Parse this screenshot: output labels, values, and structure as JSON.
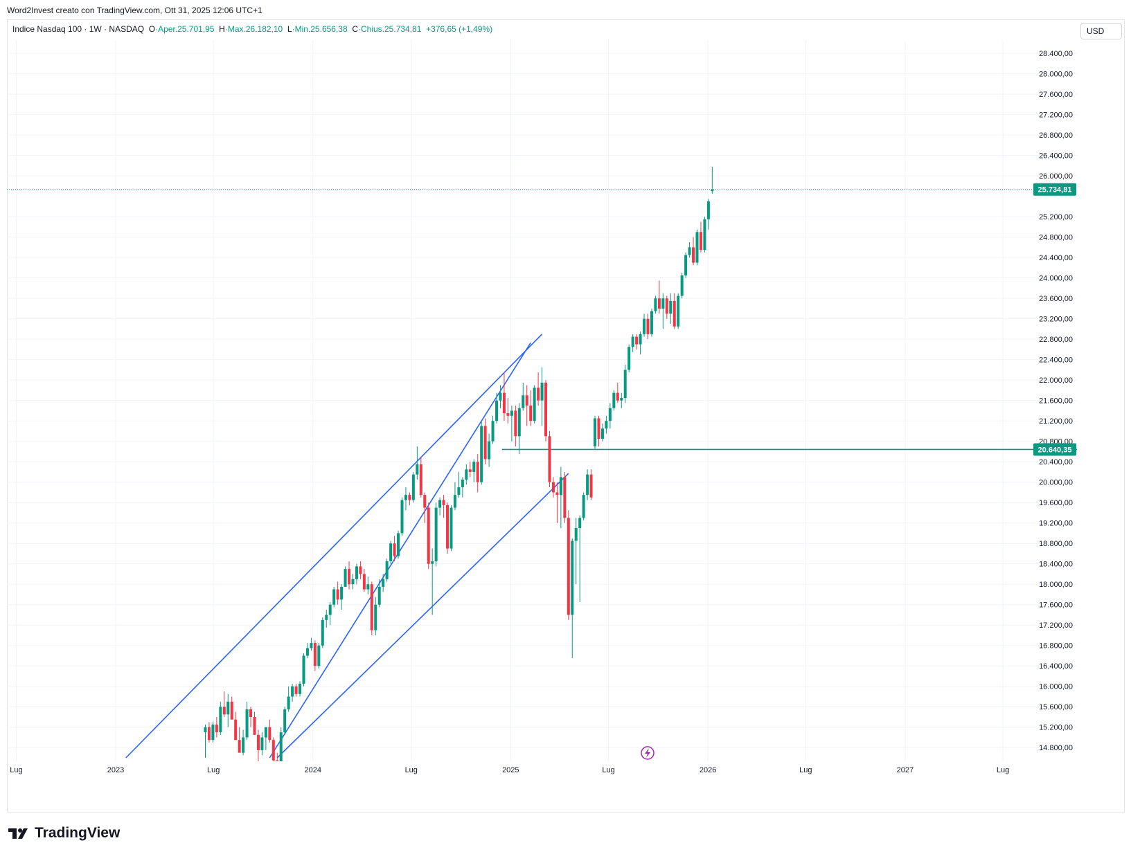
{
  "credit": "Word2Invest creato con TradingView.com, Ott 31, 2025 12:06 UTC+1",
  "legend": {
    "symbol": "Indice Nasdaq 100 · 1W · NASDAQ",
    "o_label": "O",
    "o_value": "·Aper.25.701,95",
    "h_label": "H",
    "h_value": "·Max.26.182,10",
    "l_label": "L",
    "l_value": "·Min.25.656,38",
    "c_label": "C",
    "c_value": "·Chius.25.734,81",
    "change": "+376,65 (+1,49%)"
  },
  "currency": "USD",
  "logo_text": "TradingView",
  "colors": {
    "up": "#089981",
    "down": "#f23645",
    "trendline": "#2962ff",
    "level": "#089981",
    "grid": "#f0f3fa",
    "flash_icon": "#9c27b0"
  },
  "chart_data": {
    "type": "candlestick",
    "interval": "1W",
    "y_axis": {
      "position": "right",
      "min": 14600,
      "max": 28700,
      "tick_labels": [
        "28.400,00",
        "28.000,00",
        "27.600,00",
        "27.200,00",
        "26.800,00",
        "26.400,00",
        "26.000,00",
        "25.200,00",
        "24.800,00",
        "24.400,00",
        "24.000,00",
        "23.600,00",
        "23.200,00",
        "22.800,00",
        "22.400,00",
        "22.000,00",
        "21.600,00",
        "21.200,00",
        "20.800,00",
        "20.400,00",
        "20.000,00",
        "19.600,00",
        "19.200,00",
        "18.800,00",
        "18.400,00",
        "18.000,00",
        "17.600,00",
        "17.200,00",
        "16.800,00",
        "16.400,00",
        "16.000,00",
        "15.600,00",
        "15.200,00",
        "14.800,00"
      ],
      "tick_values": [
        28400,
        28000,
        27600,
        27200,
        26800,
        26400,
        26000,
        25200,
        24800,
        24400,
        24000,
        23600,
        23200,
        22800,
        22400,
        22000,
        21600,
        21200,
        20800,
        20400,
        20000,
        19600,
        19200,
        18800,
        18400,
        18000,
        17600,
        17200,
        16800,
        16400,
        16000,
        15600,
        15200,
        14800
      ]
    },
    "x_axis": {
      "start": "2022-06-01",
      "end": "2027-11-15",
      "labels": [
        {
          "text": "Lug",
          "date": "2022-07-01"
        },
        {
          "text": "2023",
          "date": "2023-01-01"
        },
        {
          "text": "Lug",
          "date": "2023-07-01"
        },
        {
          "text": "2024",
          "date": "2024-01-01"
        },
        {
          "text": "Lug",
          "date": "2024-07-01"
        },
        {
          "text": "2025",
          "date": "2025-01-01"
        },
        {
          "text": "Lug",
          "date": "2025-07-01"
        },
        {
          "text": "2026",
          "date": "2026-01-01"
        },
        {
          "text": "Lug",
          "date": "2026-07-01"
        },
        {
          "text": "2027",
          "date": "2027-01-01"
        },
        {
          "text": "Lug",
          "date": "2027-07-01"
        }
      ]
    },
    "grid": true,
    "price_labels": [
      {
        "text": "25.734,81",
        "value": 25734.81,
        "style": "last-price"
      },
      {
        "text": "20.640,35",
        "value": 20640.35,
        "style": "level"
      }
    ],
    "horizontal_level": {
      "value": 20640.35,
      "from": "2024-12-16"
    },
    "trendlines": [
      {
        "x1": "2023-01-20",
        "y1": 14600,
        "x2": "2025-02-28",
        "y2": 22900
      },
      {
        "x1": "2023-10-13",
        "y1": 14600,
        "x2": "2025-02-07",
        "y2": 22730
      },
      {
        "x1": "2023-10-27",
        "y1": 14600,
        "x2": "2025-04-18",
        "y2": 20170
      }
    ],
    "ohlc": [
      [
        "2023-06-16",
        15100,
        15250,
        14600,
        15200
      ],
      [
        "2023-06-23",
        15200,
        15300,
        14900,
        14950
      ],
      [
        "2023-06-30",
        14950,
        15300,
        14900,
        15250
      ],
      [
        "2023-07-07",
        15250,
        15400,
        15000,
        15100
      ],
      [
        "2023-07-14",
        15100,
        15700,
        15050,
        15600
      ],
      [
        "2023-07-21",
        15600,
        15900,
        15400,
        15450
      ],
      [
        "2023-07-28",
        15450,
        15850,
        15200,
        15700
      ],
      [
        "2023-08-04",
        15700,
        15800,
        15350,
        15350
      ],
      [
        "2023-08-11",
        15350,
        15500,
        14950,
        14950
      ],
      [
        "2023-08-18",
        14950,
        15200,
        14700,
        14700
      ],
      [
        "2023-08-25",
        14700,
        15150,
        14650,
        15000
      ],
      [
        "2023-09-01",
        15000,
        15700,
        14950,
        15550
      ],
      [
        "2023-09-08",
        15550,
        15600,
        15200,
        15400
      ],
      [
        "2023-09-15",
        15400,
        15500,
        15050,
        15050
      ],
      [
        "2023-09-22",
        15050,
        15150,
        14500,
        14750
      ],
      [
        "2023-09-29",
        14750,
        15100,
        14650,
        15000
      ],
      [
        "2023-10-06",
        15000,
        15200,
        14750,
        15200
      ],
      [
        "2023-10-13",
        15200,
        15350,
        14900,
        14950
      ],
      [
        "2023-10-20",
        14950,
        15000,
        14500,
        14550
      ],
      [
        "2023-10-27",
        14550,
        14700,
        14150,
        14200
      ],
      [
        "2023-11-03",
        14200,
        15200,
        14150,
        15100
      ],
      [
        "2023-11-10",
        15100,
        15600,
        15050,
        15550
      ],
      [
        "2023-11-17",
        15550,
        16000,
        15500,
        15800
      ],
      [
        "2023-11-24",
        15800,
        16050,
        15700,
        16000
      ],
      [
        "2023-12-01",
        16000,
        16050,
        15800,
        15850
      ],
      [
        "2023-12-08",
        15850,
        16100,
        15800,
        16050
      ],
      [
        "2023-12-15",
        16050,
        16650,
        16000,
        16600
      ],
      [
        "2023-12-22",
        16600,
        16850,
        16550,
        16750
      ],
      [
        "2023-12-29",
        16750,
        16950,
        16700,
        16850
      ],
      [
        "2024-01-05",
        16850,
        16900,
        16300,
        16400
      ],
      [
        "2024-01-12",
        16400,
        16850,
        16350,
        16800
      ],
      [
        "2024-01-19",
        16800,
        17350,
        16750,
        17300
      ],
      [
        "2024-01-26",
        17300,
        17500,
        17150,
        17400
      ],
      [
        "2024-02-02",
        17400,
        17650,
        17200,
        17600
      ],
      [
        "2024-02-09",
        17600,
        17950,
        17550,
        17900
      ],
      [
        "2024-02-16",
        17900,
        18050,
        17600,
        17700
      ],
      [
        "2024-02-23",
        17700,
        18000,
        17500,
        17950
      ],
      [
        "2024-03-01",
        17950,
        18350,
        17950,
        18300
      ],
      [
        "2024-03-08",
        18300,
        18450,
        17900,
        18000
      ],
      [
        "2024-03-15",
        18000,
        18200,
        17900,
        18100
      ],
      [
        "2024-03-22",
        18100,
        18400,
        18000,
        18350
      ],
      [
        "2024-03-29",
        18350,
        18450,
        18100,
        18200
      ],
      [
        "2024-04-05",
        18200,
        18300,
        17850,
        17900
      ],
      [
        "2024-04-12",
        17900,
        18150,
        17800,
        18000
      ],
      [
        "2024-04-19",
        18000,
        18050,
        17000,
        17100
      ],
      [
        "2024-04-26",
        17100,
        17750,
        17000,
        17600
      ],
      [
        "2024-05-03",
        17600,
        18100,
        17550,
        17950
      ],
      [
        "2024-05-10",
        17950,
        18200,
        17850,
        18100
      ],
      [
        "2024-05-17",
        18100,
        18500,
        18050,
        18450
      ],
      [
        "2024-05-24",
        18450,
        18850,
        18400,
        18800
      ],
      [
        "2024-05-31",
        18800,
        18950,
        18450,
        18550
      ],
      [
        "2024-06-07",
        18550,
        19050,
        18500,
        19000
      ],
      [
        "2024-06-14",
        19000,
        19700,
        18950,
        19650
      ],
      [
        "2024-06-21",
        19650,
        19900,
        19450,
        19750
      ],
      [
        "2024-06-28",
        19750,
        19800,
        19550,
        19650
      ],
      [
        "2024-07-05",
        19650,
        20200,
        19600,
        20150
      ],
      [
        "2024-07-12",
        20150,
        20700,
        20050,
        20350
      ],
      [
        "2024-07-19",
        20350,
        20500,
        19700,
        19750
      ],
      [
        "2024-07-26",
        19750,
        19800,
        19200,
        19500
      ],
      [
        "2024-08-02",
        19500,
        19600,
        18300,
        18400
      ],
      [
        "2024-08-09",
        18400,
        18700,
        17400,
        18450
      ],
      [
        "2024-08-16",
        18450,
        19600,
        18350,
        19500
      ],
      [
        "2024-08-23",
        19500,
        19700,
        19350,
        19650
      ],
      [
        "2024-08-30",
        19650,
        19750,
        19300,
        19550
      ],
      [
        "2024-09-06",
        19550,
        19600,
        18600,
        18700
      ],
      [
        "2024-09-13",
        18700,
        19550,
        18650,
        19500
      ],
      [
        "2024-09-20",
        19500,
        20000,
        19450,
        19750
      ],
      [
        "2024-09-27",
        19750,
        20200,
        19700,
        19900
      ],
      [
        "2024-10-04",
        19900,
        20100,
        19700,
        20050
      ],
      [
        "2024-10-11",
        20050,
        20350,
        19950,
        20250
      ],
      [
        "2024-10-18",
        20250,
        20400,
        20100,
        20200
      ],
      [
        "2024-10-25",
        20200,
        20450,
        20000,
        20400
      ],
      [
        "2024-11-01",
        20400,
        20550,
        19800,
        20000
      ],
      [
        "2024-11-08",
        20000,
        21200,
        19950,
        21100
      ],
      [
        "2024-11-15",
        21100,
        21250,
        20350,
        20450
      ],
      [
        "2024-11-22",
        20450,
        20950,
        20300,
        20800
      ],
      [
        "2024-11-29",
        20800,
        21300,
        20750,
        21200
      ],
      [
        "2024-12-06",
        21200,
        21750,
        21150,
        21600
      ],
      [
        "2024-12-13",
        21600,
        21900,
        21450,
        21750
      ],
      [
        "2024-12-20",
        21750,
        22150,
        21200,
        21350
      ],
      [
        "2024-12-27",
        21350,
        21650,
        21150,
        21300
      ],
      [
        "2025-01-03",
        21300,
        21500,
        20800,
        21400
      ],
      [
        "2025-01-10",
        21400,
        21500,
        20700,
        20900
      ],
      [
        "2025-01-17",
        20900,
        21550,
        20550,
        21450
      ],
      [
        "2025-01-24",
        21450,
        21950,
        21400,
        21700
      ],
      [
        "2025-01-31",
        21700,
        21900,
        21100,
        21500
      ],
      [
        "2025-02-07",
        21500,
        21800,
        21100,
        21200
      ],
      [
        "2025-02-14",
        21200,
        21900,
        21150,
        21850
      ],
      [
        "2025-02-21",
        21850,
        22150,
        21500,
        21600
      ],
      [
        "2025-02-28",
        21600,
        22250,
        21100,
        21950
      ],
      [
        "2025-03-07",
        21950,
        22000,
        20800,
        20900
      ],
      [
        "2025-03-14",
        20900,
        21000,
        19900,
        20000
      ],
      [
        "2025-03-21",
        20000,
        20100,
        19700,
        19800
      ],
      [
        "2025-03-28",
        19800,
        20000,
        19200,
        19750
      ],
      [
        "2025-04-04",
        19750,
        20300,
        19100,
        20100
      ],
      [
        "2025-04-11",
        20100,
        20200,
        19200,
        19300
      ],
      [
        "2025-04-18",
        19300,
        19450,
        17300,
        17400
      ],
      [
        "2025-04-25",
        17400,
        18900,
        16550,
        18850
      ],
      [
        "2025-05-02",
        18850,
        19300,
        18000,
        19100
      ],
      [
        "2025-05-09",
        19100,
        19350,
        17650,
        19300
      ],
      [
        "2025-05-16",
        19300,
        19800,
        19250,
        19750
      ],
      [
        "2025-05-23",
        19750,
        20250,
        19650,
        20150
      ],
      [
        "2025-05-30",
        20150,
        20250,
        19650,
        19700
      ],
      [
        "2025-06-06",
        20700,
        21300,
        20650,
        21250
      ],
      [
        "2025-06-13",
        21250,
        21300,
        20700,
        20850
      ],
      [
        "2025-06-20",
        20850,
        21150,
        20800,
        21050
      ],
      [
        "2025-06-27",
        21050,
        21300,
        20950,
        21200
      ],
      [
        "2025-07-04",
        21200,
        21550,
        21050,
        21450
      ],
      [
        "2025-07-11",
        21450,
        21800,
        21400,
        21750
      ],
      [
        "2025-07-18",
        21750,
        21950,
        21550,
        21600
      ],
      [
        "2025-07-25",
        21600,
        21750,
        21450,
        21650
      ],
      [
        "2025-08-01",
        21650,
        22300,
        21550,
        22200
      ],
      [
        "2025-08-08",
        22200,
        22700,
        22150,
        22650
      ],
      [
        "2025-08-15",
        22650,
        22900,
        22550,
        22850
      ],
      [
        "2025-08-22",
        22850,
        22900,
        22600,
        22700
      ],
      [
        "2025-08-29",
        22700,
        22950,
        22500,
        22900
      ],
      [
        "2025-09-05",
        22900,
        23300,
        22850,
        23200
      ],
      [
        "2025-09-12",
        23200,
        23300,
        22800,
        22900
      ],
      [
        "2025-09-19",
        22900,
        23400,
        22850,
        23350
      ],
      [
        "2025-09-26",
        23350,
        23650,
        23300,
        23600
      ],
      [
        "2025-10-03",
        23600,
        23950,
        23300,
        23400
      ],
      [
        "2025-10-10",
        23400,
        23700,
        23000,
        23600
      ],
      [
        "2025-10-17",
        23600,
        23650,
        23200,
        23300
      ],
      [
        "2025-10-24",
        23300,
        23700,
        23100,
        23550
      ],
      [
        "2025-10-31",
        23550,
        23700,
        23000,
        23050
      ],
      [
        "2025-11-07",
        23050,
        23700,
        23000,
        23650
      ],
      [
        "2025-11-14",
        23650,
        24100,
        23600,
        24050
      ],
      [
        "2025-11-21",
        24050,
        24500,
        24000,
        24450
      ],
      [
        "2025-11-28",
        24450,
        24700,
        24400,
        24600
      ],
      [
        "2025-12-05",
        24600,
        24800,
        24250,
        24300
      ],
      [
        "2025-12-12",
        24300,
        24950,
        24250,
        24900
      ],
      [
        "2025-12-19",
        24900,
        25100,
        24500,
        24550
      ],
      [
        "2025-12-26",
        24550,
        25200,
        24500,
        25150
      ],
      [
        "2026-01-02",
        25150,
        25550,
        24950,
        25500
      ],
      [
        "2026-01-09",
        25700,
        26180,
        25650,
        25730
      ]
    ]
  }
}
